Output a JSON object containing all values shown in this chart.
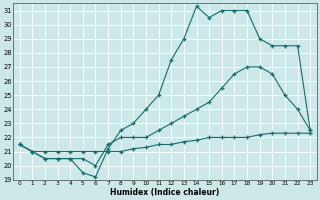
{
  "xlabel": "Humidex (Indice chaleur)",
  "xlim": [
    -0.5,
    23.5
  ],
  "ylim": [
    19,
    31.5
  ],
  "yticks": [
    19,
    20,
    21,
    22,
    23,
    24,
    25,
    26,
    27,
    28,
    29,
    30,
    31
  ],
  "xticks": [
    0,
    1,
    2,
    3,
    4,
    5,
    6,
    7,
    8,
    9,
    10,
    11,
    12,
    13,
    14,
    15,
    16,
    17,
    18,
    19,
    20,
    21,
    22,
    23
  ],
  "bg_color": "#cce8e8",
  "grid_color": "#ffffff",
  "line_color": "#1a6b6b",
  "line1_x": [
    0,
    1,
    2,
    3,
    4,
    5,
    6,
    7,
    8,
    9,
    10,
    11,
    12,
    13,
    14,
    15,
    16,
    17,
    18,
    19,
    20,
    21,
    22,
    23
  ],
  "line1_y": [
    21.5,
    21.0,
    21.0,
    21.0,
    21.0,
    21.0,
    21.0,
    21.0,
    21.0,
    21.2,
    21.3,
    21.5,
    21.5,
    21.7,
    21.8,
    22.0,
    22.0,
    22.0,
    22.0,
    22.2,
    22.3,
    22.3,
    22.3,
    22.3
  ],
  "line2_x": [
    0,
    1,
    2,
    3,
    4,
    5,
    6,
    7,
    8,
    9,
    10,
    11,
    12,
    13,
    14,
    15,
    16,
    17,
    18,
    19,
    20,
    21,
    22,
    23
  ],
  "line2_y": [
    21.5,
    21.0,
    20.5,
    20.5,
    20.5,
    19.5,
    19.2,
    21.2,
    22.5,
    23.0,
    24.0,
    25.0,
    27.5,
    29.0,
    31.3,
    30.5,
    31.0,
    31.0,
    31.0,
    29.0,
    28.5,
    28.5,
    28.5,
    22.5
  ],
  "line3_x": [
    0,
    1,
    2,
    3,
    4,
    5,
    6,
    7,
    8,
    9,
    10,
    11,
    12,
    13,
    14,
    15,
    16,
    17,
    18,
    19,
    20,
    21,
    22,
    23
  ],
  "line3_y": [
    21.5,
    21.0,
    20.5,
    20.5,
    20.5,
    20.5,
    20.0,
    21.5,
    22.0,
    22.0,
    22.0,
    22.5,
    23.0,
    23.5,
    24.0,
    24.5,
    25.5,
    26.5,
    27.0,
    27.0,
    26.5,
    25.0,
    24.0,
    22.5
  ]
}
